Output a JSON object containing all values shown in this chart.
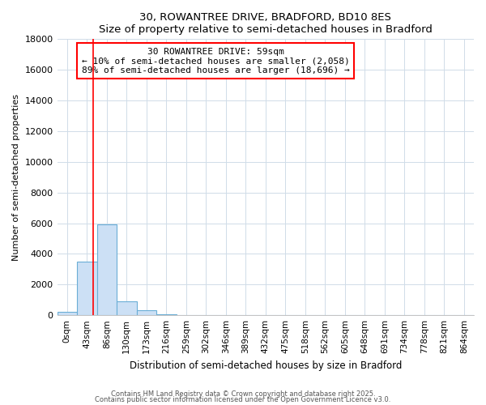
{
  "title": "30, ROWANTREE DRIVE, BRADFORD, BD10 8ES",
  "subtitle": "Size of property relative to semi-detached houses in Bradford",
  "xlabel": "Distribution of semi-detached houses by size in Bradford",
  "ylabel": "Number of semi-detached properties",
  "annotation_label": "30 ROWANTREE DRIVE: 59sqm",
  "annotation_smaller": "← 10% of semi-detached houses are smaller (2,058)",
  "annotation_larger": "89% of semi-detached houses are larger (18,696) →",
  "bar_labels": [
    "0sqm",
    "43sqm",
    "86sqm",
    "130sqm",
    "173sqm",
    "216sqm",
    "259sqm",
    "302sqm",
    "346sqm",
    "389sqm",
    "432sqm",
    "475sqm",
    "518sqm",
    "562sqm",
    "605sqm",
    "648sqm",
    "691sqm",
    "734sqm",
    "778sqm",
    "821sqm",
    "864sqm"
  ],
  "bar_values": [
    200,
    3500,
    5900,
    900,
    300,
    80,
    20,
    5,
    2,
    1,
    0,
    0,
    0,
    0,
    0,
    0,
    0,
    0,
    0,
    0,
    0
  ],
  "bar_color": "#cce0f5",
  "bar_edge_color": "#6baed6",
  "red_line_x": 1.3,
  "ylim": [
    0,
    18000
  ],
  "yticks": [
    0,
    2000,
    4000,
    6000,
    8000,
    10000,
    12000,
    14000,
    16000,
    18000
  ],
  "grid_color": "#d0dce8",
  "bg_color": "#ffffff",
  "footer1": "Contains HM Land Registry data © Crown copyright and database right 2025.",
  "footer2": "Contains public sector information licensed under the Open Government Licence v3.0."
}
